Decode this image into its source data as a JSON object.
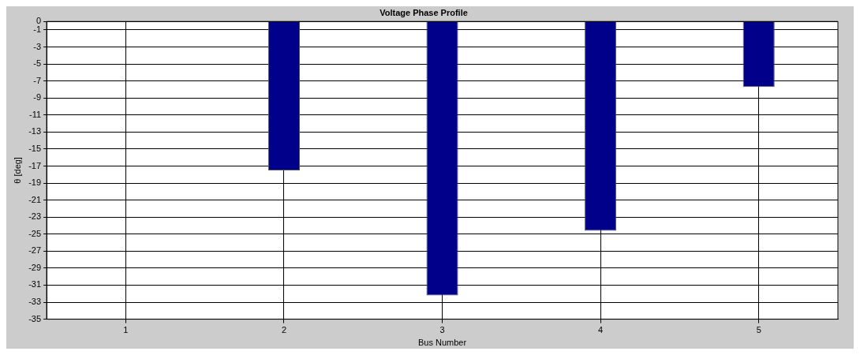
{
  "chart_data": {
    "type": "bar",
    "title": "Voltage Phase Profile",
    "xlabel": "Bus Number",
    "ylabel": "θ [deg]",
    "categories": [
      "1",
      "2",
      "3",
      "4",
      "5"
    ],
    "values": [
      0,
      -17.5,
      -32.2,
      -24.6,
      -7.7
    ],
    "color": "#00008b",
    "ylim": [
      -35,
      0
    ],
    "yticks": [
      0,
      -1,
      -3,
      -5,
      -7,
      -9,
      -11,
      -13,
      -15,
      -17,
      -19,
      -21,
      -23,
      -25,
      -27,
      -29,
      -31,
      -33,
      -35
    ],
    "grid": true
  }
}
